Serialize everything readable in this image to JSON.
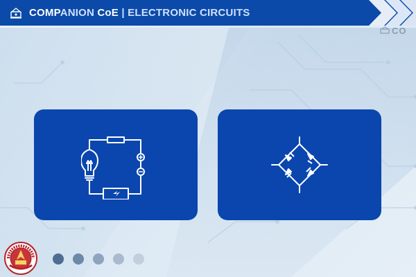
{
  "header": {
    "title_emph": "COMP",
    "title_dim": "ANION ",
    "title_bold": "CoE",
    "title_sub": " | ELECTRONIC CIRCUITS"
  },
  "corner_mark": "CO",
  "cards": [
    {
      "name": "circuit-card",
      "icon": "bulb-battery-circuit-icon"
    },
    {
      "name": "bridge-rectifier-card",
      "icon": "bridge-rectifier-icon"
    }
  ],
  "pagination": {
    "count": 5,
    "colors": [
      "#4d6d91",
      "#6d89a8",
      "#8ea4bd",
      "#aab9cb",
      "#c3cfdc"
    ]
  },
  "colors": {
    "header_bg": "#0b4aa8",
    "card_bg": "#0a46ad",
    "icon_stroke": "#ffffff"
  },
  "seal": {
    "text": "STATE UNIVERSITY"
  }
}
